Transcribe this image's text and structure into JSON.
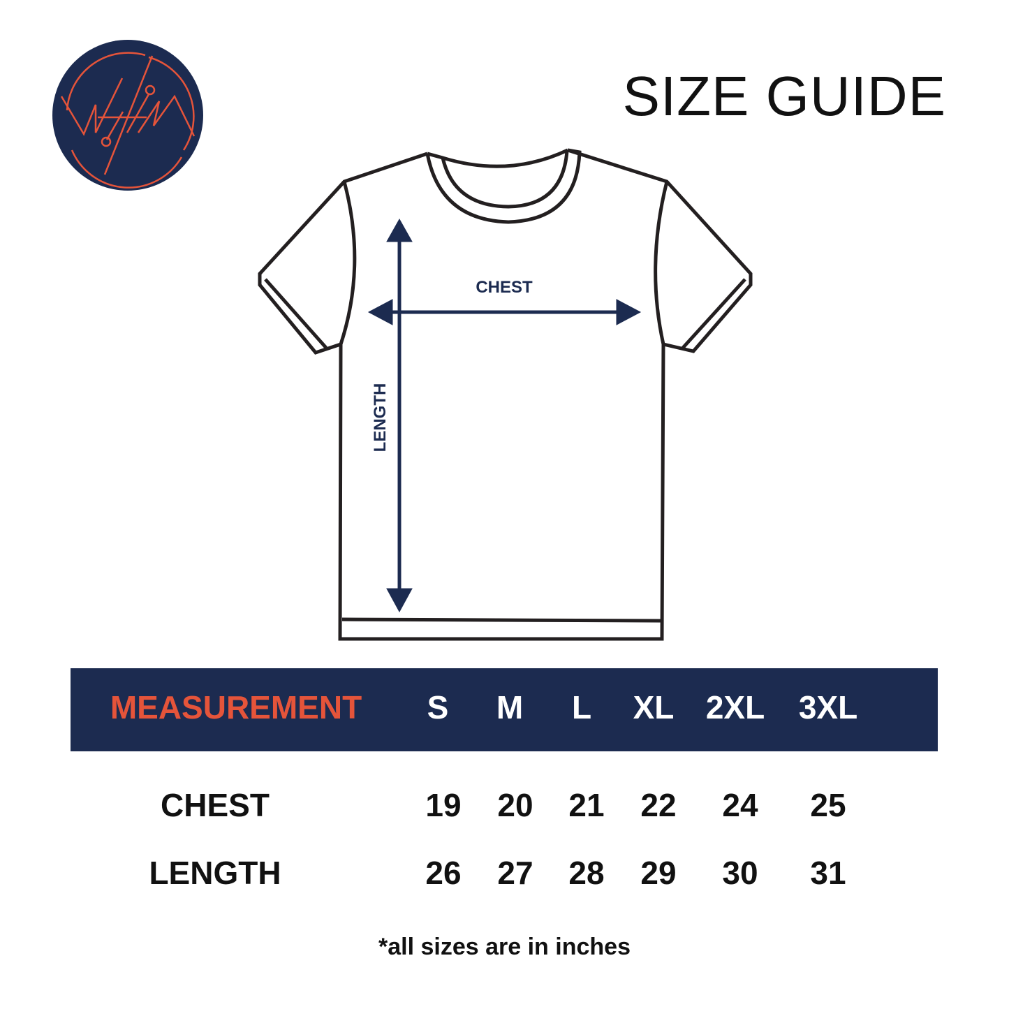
{
  "logo": {
    "text": "WHIM",
    "colors": {
      "background": "#1c2b50",
      "lines": "#e5543a"
    }
  },
  "title": "SIZE GUIDE",
  "diagram": {
    "chest_label": "CHEST",
    "length_label": "LENGTH",
    "arrow_color": "#1c2b50"
  },
  "table": {
    "header": {
      "measurement": "MEASUREMENT",
      "sizes": [
        "S",
        "M",
        "L",
        "XL",
        "2XL",
        "3XL"
      ]
    },
    "rows": [
      {
        "label": "CHEST",
        "values": [
          "19",
          "20",
          "21",
          "22",
          "24",
          "25"
        ]
      },
      {
        "label": "LENGTH",
        "values": [
          "26",
          "27",
          "28",
          "29",
          "30",
          "31"
        ]
      }
    ],
    "colors": {
      "band": "#1c2b50",
      "measurement": "#e5543a"
    }
  },
  "note": "*all sizes are in inches"
}
